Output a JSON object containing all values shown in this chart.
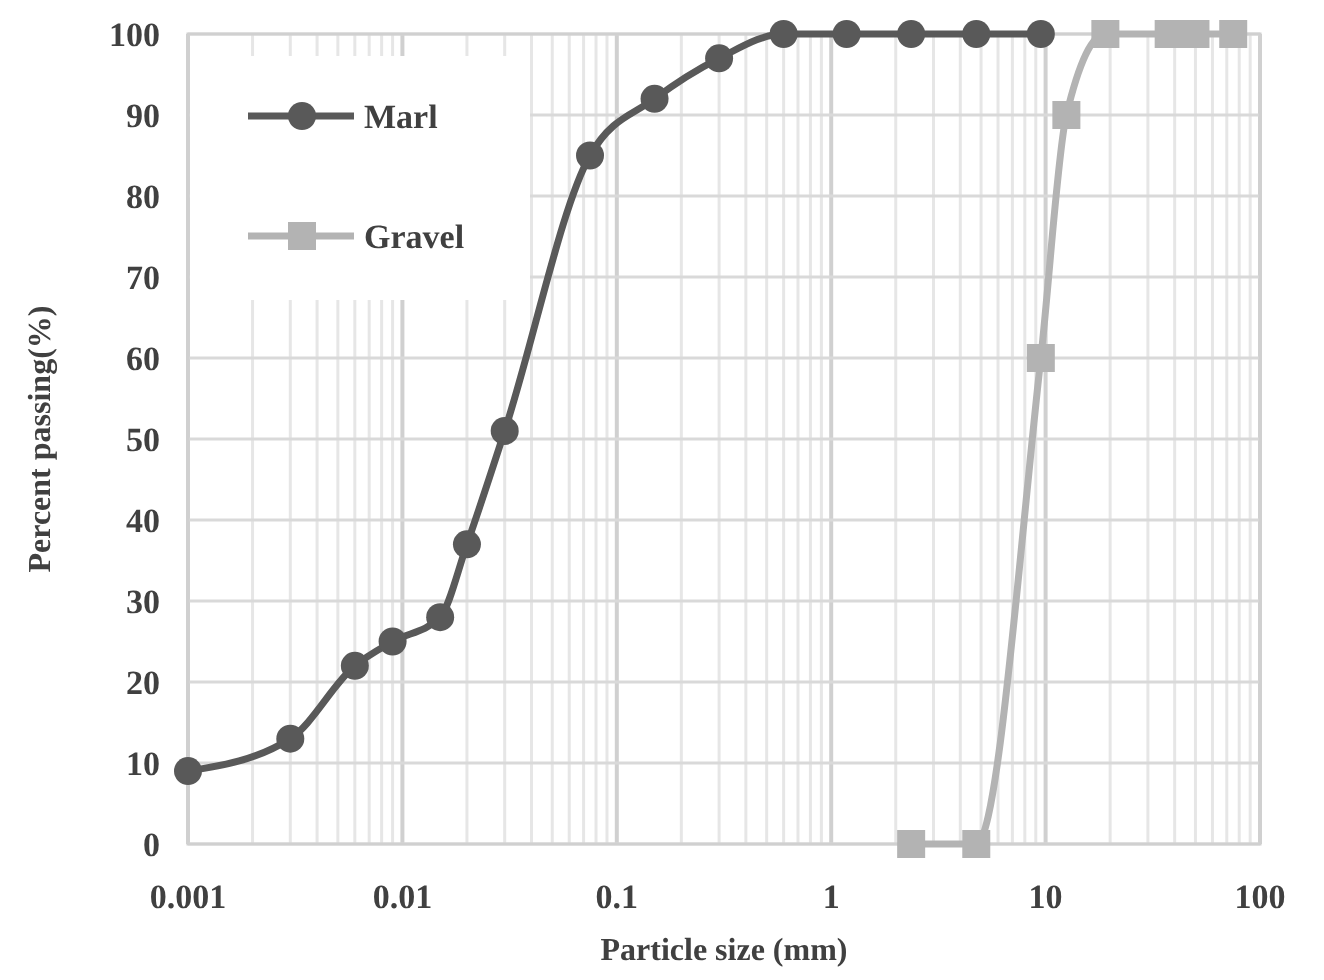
{
  "chart_data": {
    "type": "line",
    "xlabel": "Particle size (mm)",
    "ylabel": "Percent passing(%)",
    "log": "x",
    "grid": true,
    "legend": "top left",
    "line_style": "solid",
    "xlim": [
      0.001,
      100
    ],
    "ylim": [
      0,
      100
    ],
    "xticks": [
      0.001,
      {
        "value": 0.002,
        "label": null
      },
      {
        "value": 0.003,
        "label": null
      },
      {
        "value": 0.004,
        "label": null
      },
      {
        "value": 0.005,
        "label": null
      },
      {
        "value": 0.006,
        "label": null
      },
      {
        "value": 0.007,
        "label": null
      },
      {
        "value": 0.008,
        "label": null
      },
      {
        "value": 0.009,
        "label": null
      },
      0.01,
      {
        "value": 0.02,
        "label": null
      },
      {
        "value": 0.03,
        "label": null
      },
      {
        "value": 0.04,
        "label": null
      },
      {
        "value": 0.05,
        "label": null
      },
      {
        "value": 0.06,
        "label": null
      },
      {
        "value": 0.07,
        "label": null
      },
      {
        "value": 0.08,
        "label": null
      },
      {
        "value": 0.09,
        "label": null
      },
      0.1,
      {
        "value": 0.2,
        "label": null
      },
      {
        "value": 0.3,
        "label": null
      },
      {
        "value": 0.4,
        "label": null
      },
      {
        "value": 0.5,
        "label": null
      },
      {
        "value": 0.6,
        "label": null
      },
      {
        "value": 0.7,
        "label": null
      },
      {
        "value": 0.8,
        "label": null
      },
      {
        "value": 0.9,
        "label": null
      },
      1,
      {
        "value": 2,
        "label": null
      },
      {
        "value": 3,
        "label": null
      },
      {
        "value": 4,
        "label": null
      },
      {
        "value": 5,
        "label": null
      },
      {
        "value": 6,
        "label": null
      },
      {
        "value": 7,
        "label": null
      },
      {
        "value": 8,
        "label": null
      },
      {
        "value": 9,
        "label": null
      },
      10,
      {
        "value": 20,
        "label": null
      },
      {
        "value": 30,
        "label": null
      },
      {
        "value": 40,
        "label": null
      },
      {
        "value": 50,
        "label": null
      },
      {
        "value": 60,
        "label": null
      },
      {
        "value": 70,
        "label": null
      },
      {
        "value": 80,
        "label": null
      },
      {
        "value": 90,
        "label": null
      },
      100
    ],
    "yticks": [
      0,
      10,
      20,
      30,
      40,
      50,
      60,
      70,
      80,
      90,
      100
    ],
    "series": [
      {
        "name": "Marl",
        "color": "#595959",
        "marker": "circle",
        "x": [
          0.001,
          0.003,
          0.006,
          0.009,
          0.015,
          0.02,
          0.03,
          0.075,
          0.15,
          0.3,
          0.6,
          1.18,
          2.36,
          4.75,
          9.5
        ],
        "values": [
          9,
          13,
          22,
          25,
          28,
          37,
          51,
          85,
          92,
          97,
          100,
          100,
          100,
          100,
          100
        ]
      },
      {
        "name": "Gravel",
        "color": "#b3b3b3",
        "marker": "square",
        "x": [
          2.36,
          4.75,
          9.5,
          12.5,
          19,
          37.5,
          50,
          75
        ],
        "values": [
          0,
          0,
          60,
          90,
          100,
          100,
          100,
          100
        ]
      }
    ]
  }
}
